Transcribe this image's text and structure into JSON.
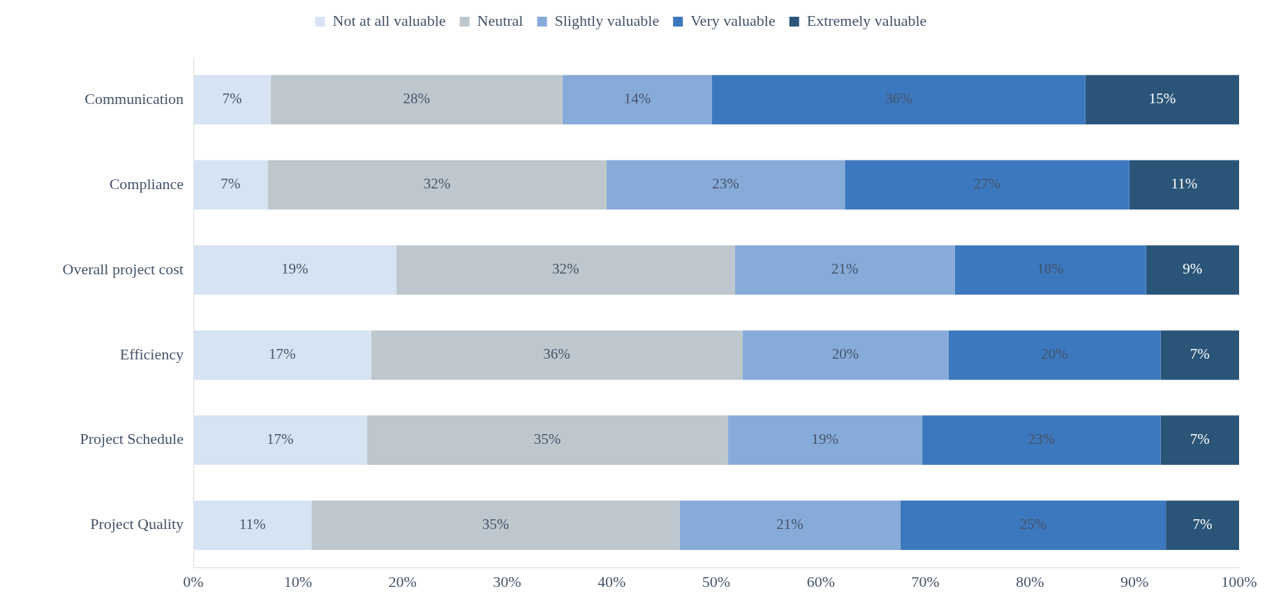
{
  "chart_data": {
    "type": "bar",
    "orientation": "horizontal",
    "stacked": true,
    "legend": "top",
    "categories": [
      "Communication",
      "Compliance",
      "Overall project cost",
      "Efficiency",
      "Project Schedule",
      "Project Quality"
    ],
    "series": [
      {
        "name": "Not at all valuable",
        "color": "#d6e3f3",
        "values": [
          7.4,
          7.1,
          19.4,
          17.0,
          16.6,
          11.3
        ],
        "value_labels": [
          "7%",
          "7%",
          "19%",
          "17%",
          "17%",
          "11%"
        ]
      },
      {
        "name": "Neutral",
        "color": "#bdc7cd",
        "values": [
          27.9,
          32.4,
          32.4,
          35.5,
          34.5,
          35.2
        ],
        "value_labels": [
          "28%",
          "32%",
          "32%",
          "36%",
          "35%",
          "35%"
        ]
      },
      {
        "name": "Slightly valuable",
        "color": "#87abd9",
        "values": [
          14.3,
          22.8,
          21.0,
          19.7,
          18.6,
          21.1
        ],
        "value_labels": [
          "14%",
          "23%",
          "21%",
          "20%",
          "19%",
          "21%"
        ]
      },
      {
        "name": "Very valuable",
        "color": "#3c78be",
        "values": [
          35.7,
          27.2,
          18.3,
          20.3,
          22.8,
          25.4
        ],
        "value_labels": [
          "36%",
          "27%",
          "18%",
          "20%",
          "23%",
          "25%"
        ]
      },
      {
        "name": "Extremely valuable",
        "color": "#2a5579",
        "values": [
          14.7,
          10.5,
          8.9,
          7.5,
          7.5,
          7.0
        ],
        "value_labels": [
          "15%",
          "11%",
          "9%",
          "7%",
          "7%",
          "7%"
        ]
      }
    ],
    "xlim": [
      0,
      100
    ],
    "xticks": [
      {
        "value": 0,
        "label": "0%"
      },
      {
        "value": 10,
        "label": "10%"
      },
      {
        "value": 20,
        "label": "20%"
      },
      {
        "value": 30,
        "label": "30%"
      },
      {
        "value": 40,
        "label": "40%"
      },
      {
        "value": 50,
        "label": "50%"
      },
      {
        "value": 60,
        "label": "60%"
      },
      {
        "value": 70,
        "label": "70%"
      },
      {
        "value": 80,
        "label": "80%"
      },
      {
        "value": 90,
        "label": "90%"
      },
      {
        "value": 100,
        "label": "100%"
      }
    ]
  }
}
